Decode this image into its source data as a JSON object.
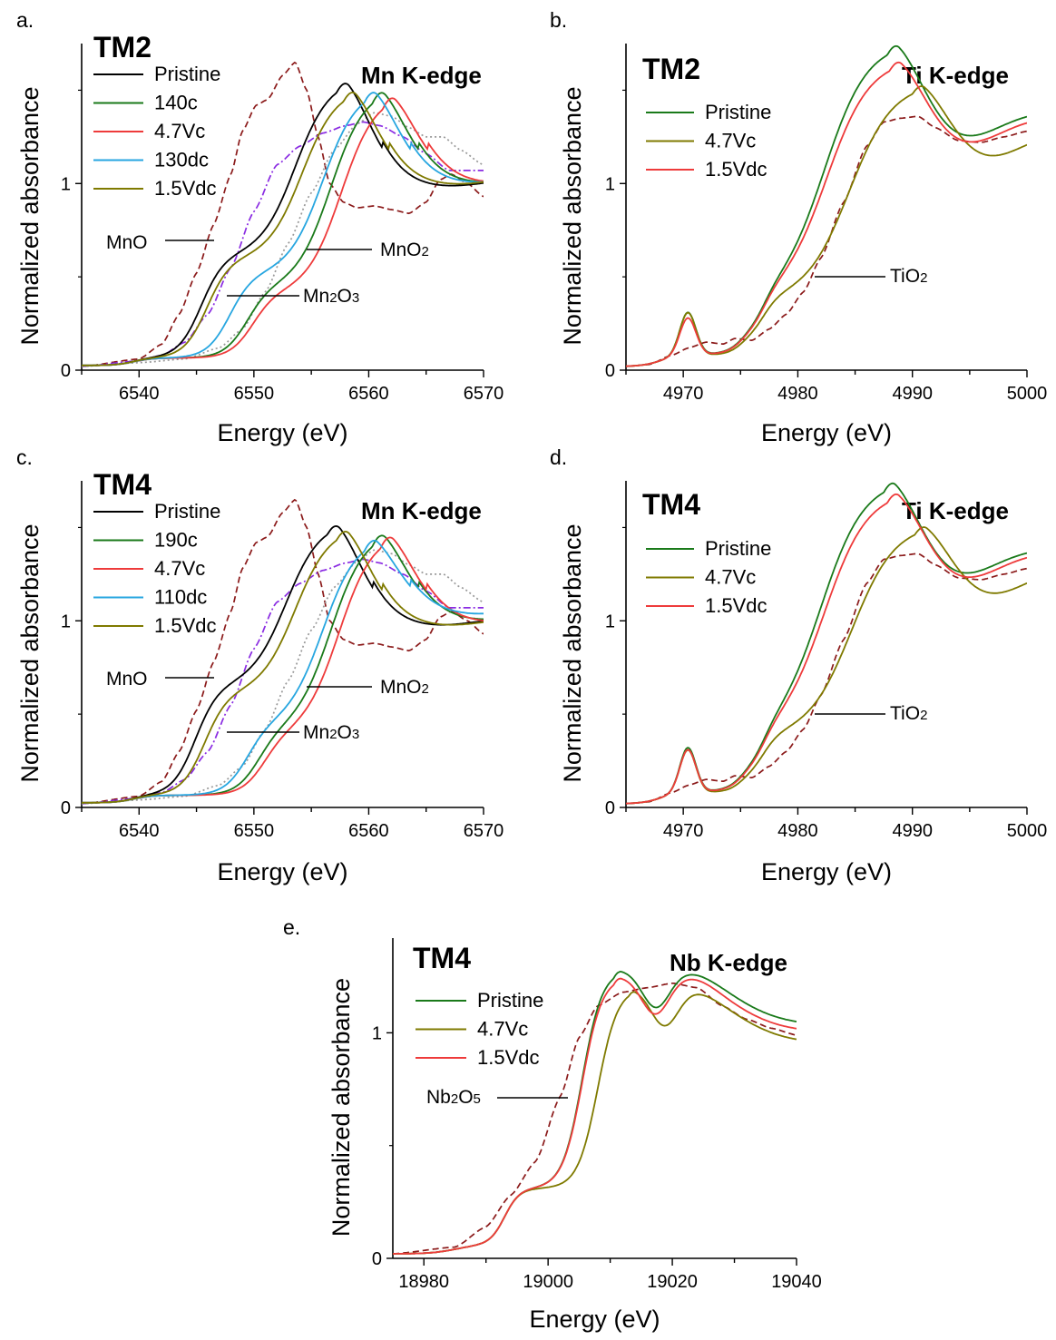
{
  "colors": {
    "Pristine_black": "#000000",
    "green": "#1a7a1a",
    "red": "#ee3b3b",
    "cyan": "#27a6e0",
    "olive": "#7f7a00",
    "ref_MnO": "#8b1a1a",
    "ref_Mn2O3": "#8a2be2",
    "ref_MnO2": "#999999"
  },
  "chart_data": [
    {
      "type": "line",
      "panel": "a.",
      "sample": "TM2",
      "edge": "Mn K-edge",
      "xlabel": "Energy (eV)",
      "ylabel": "Normalized absorbance",
      "xlim": [
        6535,
        6570
      ],
      "ylim": [
        0,
        1.75
      ],
      "xticks": [
        "6540",
        "6550",
        "6560",
        "6570"
      ],
      "yticks": [
        "0",
        "1"
      ],
      "legend": [
        "Pristine",
        "140c",
        "4.7Vc",
        "130dc",
        "1.5Vdc"
      ],
      "references": [
        "MnO",
        "Mn2O3",
        "MnO2"
      ],
      "series": [
        {
          "name": "Pristine",
          "color": "#000000",
          "style": "solid",
          "kind": "mn",
          "params": [
            6547,
            0.62,
            6557.2,
            1.57,
            1.01
          ]
        },
        {
          "name": "140c",
          "color": "#1a7a1a",
          "style": "solid",
          "kind": "mn",
          "params": [
            6551,
            0.45,
            6560.3,
            1.52,
            1.03
          ]
        },
        {
          "name": "4.7Vc",
          "color": "#ee3b3b",
          "style": "solid",
          "kind": "mn",
          "params": [
            6551.5,
            0.42,
            6561.2,
            1.49,
            1.03
          ]
        },
        {
          "name": "130dc",
          "color": "#27a6e0",
          "style": "solid",
          "kind": "mn",
          "params": [
            6549.5,
            0.52,
            6559.6,
            1.52,
            1.03
          ]
        },
        {
          "name": "1.5Vdc",
          "color": "#7f7a00",
          "style": "solid",
          "kind": "mn",
          "params": [
            6547.5,
            0.6,
            6557.8,
            1.52,
            1.02
          ]
        },
        {
          "name": "MnO",
          "color": "#8b1a1a",
          "style": "dash",
          "kind": "mno",
          "params": []
        },
        {
          "name": "Mn2O3",
          "color": "#8a2be2",
          "style": "dashdot",
          "kind": "mn2o3",
          "params": []
        },
        {
          "name": "MnO2",
          "color": "#999999",
          "style": "dot",
          "kind": "mno2",
          "params": []
        }
      ]
    },
    {
      "type": "line",
      "panel": "b.",
      "sample": "TM2",
      "edge": "Ti K-edge",
      "xlabel": "Energy (eV)",
      "ylabel": "Normalized absorbance",
      "xlim": [
        4965,
        5000
      ],
      "ylim": [
        0,
        1.75
      ],
      "xticks": [
        "4970",
        "4980",
        "4990",
        "5000"
      ],
      "yticks": [
        "0",
        "1"
      ],
      "legend": [
        "Pristine",
        "4.7Vc",
        "1.5Vdc"
      ],
      "references": [
        "TiO2"
      ],
      "series": [
        {
          "name": "Pristine",
          "color": "#1a7a1a",
          "style": "solid",
          "kind": "ti",
          "params": [
            4987.8,
            1.76,
            1.35,
            0.3
          ]
        },
        {
          "name": "4.7Vc",
          "color": "#7f7a00",
          "style": "solid",
          "kind": "ti",
          "params": [
            4990,
            1.54,
            1.25,
            0.3
          ]
        },
        {
          "name": "1.5Vdc",
          "color": "#ee3b3b",
          "style": "solid",
          "kind": "ti",
          "params": [
            4988,
            1.67,
            1.32,
            0.27
          ]
        },
        {
          "name": "TiO2",
          "color": "#8b1a1a",
          "style": "dash",
          "kind": "tio2",
          "params": []
        }
      ]
    },
    {
      "type": "line",
      "panel": "c.",
      "sample": "TM4",
      "edge": "Mn K-edge",
      "xlabel": "Energy (eV)",
      "ylabel": "Normalized absorbance",
      "xlim": [
        6535,
        6570
      ],
      "ylim": [
        0,
        1.75
      ],
      "xticks": [
        "6540",
        "6550",
        "6560",
        "6570"
      ],
      "yticks": [
        "0",
        "1"
      ],
      "legend": [
        "Pristine",
        "190c",
        "4.7Vc",
        "110dc",
        "1.5Vdc"
      ],
      "references": [
        "MnO",
        "Mn2O3",
        "MnO2"
      ],
      "series": [
        {
          "name": "Pristine",
          "color": "#000000",
          "style": "solid",
          "kind": "mn",
          "params": [
            6546.5,
            0.66,
            6556.4,
            1.54,
            1.0
          ]
        },
        {
          "name": "190c",
          "color": "#1a7a1a",
          "style": "solid",
          "kind": "mn",
          "params": [
            6552,
            0.42,
            6560.3,
            1.49,
            1.03
          ]
        },
        {
          "name": "4.7Vc",
          "color": "#ee3b3b",
          "style": "solid",
          "kind": "mn",
          "params": [
            6552.5,
            0.4,
            6561,
            1.48,
            1.02
          ]
        },
        {
          "name": "110dc",
          "color": "#27a6e0",
          "style": "solid",
          "kind": "mn",
          "params": [
            6551,
            0.45,
            6559.6,
            1.46,
            1.06
          ]
        },
        {
          "name": "1.5Vdc",
          "color": "#7f7a00",
          "style": "solid",
          "kind": "mn",
          "params": [
            6547.3,
            0.62,
            6557.2,
            1.51,
            1.0
          ]
        },
        {
          "name": "MnO",
          "color": "#8b1a1a",
          "style": "dash",
          "kind": "mno",
          "params": []
        },
        {
          "name": "Mn2O3",
          "color": "#8a2be2",
          "style": "dashdot",
          "kind": "mn2o3",
          "params": []
        },
        {
          "name": "MnO2",
          "color": "#999999",
          "style": "dot",
          "kind": "mno2",
          "params": []
        }
      ]
    },
    {
      "type": "line",
      "panel": "d.",
      "sample": "TM4",
      "edge": "Ti K-edge",
      "xlabel": "Energy (eV)",
      "ylabel": "Normalized absorbance",
      "xlim": [
        4965,
        5000
      ],
      "ylim": [
        0,
        1.75
      ],
      "xticks": [
        "4970",
        "4980",
        "4990",
        "5000"
      ],
      "yticks": [
        "0",
        "1"
      ],
      "legend": [
        "Pristine",
        "4.7Vc",
        "1.5Vdc"
      ],
      "references": [
        "TiO2"
      ],
      "series": [
        {
          "name": "Pristine",
          "color": "#1a7a1a",
          "style": "solid",
          "kind": "ti",
          "params": [
            4987.5,
            1.76,
            1.35,
            0.31
          ]
        },
        {
          "name": "4.7Vc",
          "color": "#7f7a00",
          "style": "solid",
          "kind": "ti",
          "params": [
            4990.2,
            1.52,
            1.25,
            0.3
          ]
        },
        {
          "name": "1.5Vdc",
          "color": "#ee3b3b",
          "style": "solid",
          "kind": "ti",
          "params": [
            4987.8,
            1.7,
            1.33,
            0.3
          ]
        },
        {
          "name": "TiO2",
          "color": "#8b1a1a",
          "style": "dash",
          "kind": "tio2",
          "params": []
        }
      ]
    },
    {
      "type": "line",
      "panel": "e.",
      "sample": "TM4",
      "edge": "Nb K-edge",
      "xlabel": "Energy (eV)",
      "ylabel": "Normalized absorbance",
      "xlim": [
        18975,
        19040
      ],
      "ylim": [
        0,
        1.42
      ],
      "xticks": [
        "18980",
        "19000",
        "19020",
        "19040"
      ],
      "yticks": [
        "0",
        "1"
      ],
      "legend": [
        "Pristine",
        "4.7Vc",
        "1.5Vdc"
      ],
      "references": [
        "Nb2O5"
      ],
      "series": [
        {
          "name": "Pristine",
          "color": "#1a7a1a",
          "style": "solid",
          "kind": "nb",
          "params": [
            19010.5,
            1.28,
            19024.2,
            1.28
          ]
        },
        {
          "name": "4.7Vc",
          "color": "#7f7a00",
          "style": "solid",
          "kind": "nb",
          "params": [
            19013,
            1.2,
            19024.5,
            1.2
          ]
        },
        {
          "name": "1.5Vdc",
          "color": "#ee3b3b",
          "style": "solid",
          "kind": "nb",
          "params": [
            19010.5,
            1.25,
            19024,
            1.26
          ]
        },
        {
          "name": "Nb2O5",
          "color": "#8b1a1a",
          "style": "dash",
          "kind": "nb2o5",
          "params": []
        }
      ]
    }
  ]
}
